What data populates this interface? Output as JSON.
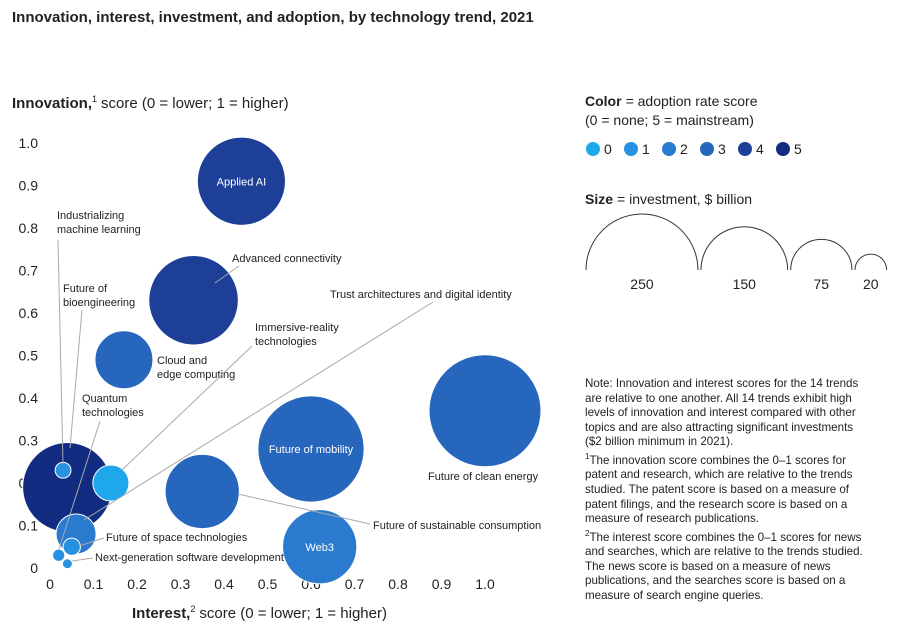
{
  "chart_data": {
    "type": "bubble",
    "title": "Innovation, interest, investment, and adoption, by technology trend, 2021",
    "y_label": {
      "name": "Innovation,",
      "ref": "1",
      "text": "score (0 = lower; 1 = higher)"
    },
    "x_label": {
      "name": "Interest,",
      "ref": "2",
      "text": "score (0 = lower; 1 = higher)"
    },
    "xlim": [
      0,
      1
    ],
    "ylim": [
      0,
      1
    ],
    "xticks": [
      0,
      0.1,
      0.2,
      0.3,
      0.4,
      0.5,
      0.6,
      0.7,
      0.8,
      0.9,
      {
        "value": 1,
        "label": "1.0"
      }
    ],
    "yticks": [
      0,
      0.1,
      0.2,
      0.3,
      0.4,
      0.5,
      0.6,
      0.7,
      0.8,
      0.9,
      {
        "value": 1,
        "label": "1.0"
      }
    ],
    "points": [
      {
        "label": [
          "Applied AI"
        ],
        "x": 0.44,
        "y": 0.91,
        "size": 155,
        "adoption": 4
      },
      {
        "label": [
          "Advanced connectivity"
        ],
        "x": 0.33,
        "y": 0.63,
        "size": 160,
        "adoption": 4
      },
      {
        "label": [
          "Cloud and",
          "edge computing"
        ],
        "x": 0.17,
        "y": 0.49,
        "size": 67,
        "adoption": 3
      },
      {
        "label": [
          "Future of mobility"
        ],
        "x": 0.6,
        "y": 0.28,
        "size": 225,
        "adoption": 3
      },
      {
        "label": [
          "Future of clean energy"
        ],
        "x": 1.0,
        "y": 0.37,
        "size": 250,
        "adoption": 3
      },
      {
        "label": [
          "Future of sustainable consumption"
        ],
        "x": 0.35,
        "y": 0.18,
        "size": 110,
        "adoption": 3
      },
      {
        "label": [
          "Web3"
        ],
        "x": 0.62,
        "y": 0.05,
        "size": 110,
        "adoption": 2
      },
      {
        "label": [
          "Future of",
          "bioengineering"
        ],
        "x": 0.04,
        "y": 0.19,
        "size": 160,
        "adoption": 5
      },
      {
        "label": [
          "Industrializing",
          "machine learning"
        ],
        "x": 0.03,
        "y": 0.23,
        "size": 5,
        "adoption": 1
      },
      {
        "label": [
          "Immersive-reality",
          "technologies"
        ],
        "x": 0.14,
        "y": 0.2,
        "size": 26,
        "adoption": 0
      },
      {
        "label": [
          "Quantum",
          "technologies"
        ],
        "x": 0.02,
        "y": 0.03,
        "size": 3,
        "adoption": 1
      },
      {
        "label": [
          "Trust architectures and digital identity"
        ],
        "x": 0.06,
        "y": 0.08,
        "size": 32,
        "adoption": 2
      },
      {
        "label": [
          "Future of space technologies"
        ],
        "x": 0.05,
        "y": 0.05,
        "size": 6,
        "adoption": 1
      },
      {
        "label": [
          "Next-generation software development"
        ],
        "x": 0.04,
        "y": 0.01,
        "size": 2,
        "adoption": 1
      }
    ],
    "color_legend": {
      "name": "Color",
      "text": "= adoption rate score",
      "subtext": "(0 = none; 5 = mainstream)",
      "levels": [
        {
          "value": 0,
          "color": "#1ea7ea"
        },
        {
          "value": 1,
          "color": "#2891e0"
        },
        {
          "value": 2,
          "color": "#2a7ad0"
        },
        {
          "value": 3,
          "color": "#2666bd"
        },
        {
          "value": 4,
          "color": "#1d3f98"
        },
        {
          "value": 5,
          "color": "#122c82"
        }
      ]
    },
    "size_legend": {
      "name": "Size",
      "text": "= investment, $ billion",
      "values": [
        250,
        150,
        75,
        20
      ]
    },
    "notes": {
      "intro": "Note: Innovation and interest scores for the 14 trends are relative to one another. All 14 trends exhibit high levels of innovation and interest compared with other topics and are also attracting significant investments ($2 billion minimum in 2021).",
      "footnotes": [
        {
          "ref": "1",
          "text": "The innovation score combines the 0–1 scores for patent and research, which are relative to the trends studied. The patent score is based on a measure of patent filings, and the research score is based on a measure of research publications."
        },
        {
          "ref": "2",
          "text": "The interest score combines the 0–1 scores for news and searches, which are relative to the trends studied. The news score is based on a measure of news publications, and the searches score is based on a measure of search engine queries."
        }
      ]
    }
  }
}
